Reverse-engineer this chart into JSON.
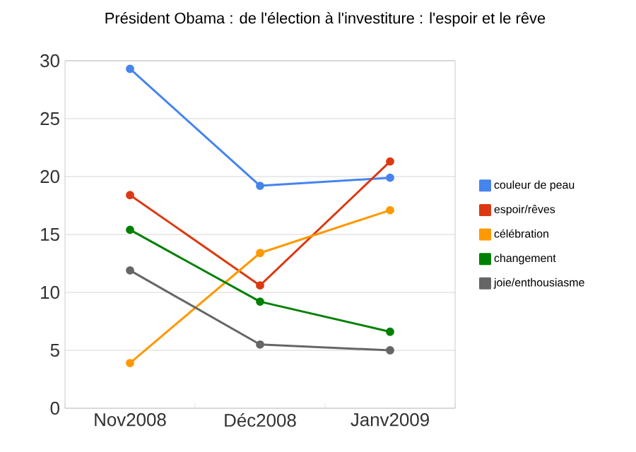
{
  "chart_data": {
    "type": "line",
    "title": "Président Obama : de l'élection à l'investiture : l'espoir et le rêve",
    "categories": [
      "Nov2008",
      "Déc2008",
      "Janv2009"
    ],
    "series": [
      {
        "name": "couleur de peau",
        "color": "#4684ee",
        "values": [
          29.3,
          19.2,
          19.9
        ]
      },
      {
        "name": "espoir/rêves",
        "color": "#dc3912",
        "values": [
          18.4,
          10.6,
          21.3
        ]
      },
      {
        "name": "célébration",
        "color": "#ff9900",
        "values": [
          3.9,
          13.4,
          17.1
        ]
      },
      {
        "name": "changement",
        "color": "#008000",
        "values": [
          15.4,
          9.2,
          6.6
        ]
      },
      {
        "name": "joie/enthousiasme",
        "color": "#666666",
        "values": [
          11.9,
          5.5,
          5.0
        ]
      }
    ],
    "ylim": [
      0,
      30
    ],
    "yticks": [
      0,
      5,
      10,
      15,
      20,
      25,
      30
    ],
    "grid": "y",
    "legend": "right",
    "marker": "circle",
    "line_style": "solid"
  }
}
